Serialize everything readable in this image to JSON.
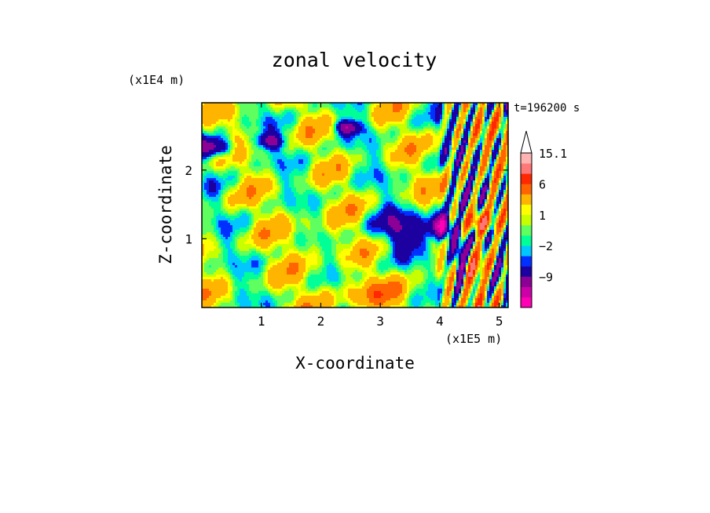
{
  "chart_data": {
    "type": "heatmap",
    "title": "zonal velocity",
    "xlabel": "X-coordinate",
    "ylabel": "Z-coordinate",
    "x_unit": "(x1E5 m)",
    "y_unit": "(x1E4 m)",
    "time_label": "t=196200 s",
    "xlim": [
      0,
      5.15
    ],
    "ylim": [
      0,
      2.98
    ],
    "x_ticks": [
      {
        "value": 1,
        "label": "1"
      },
      {
        "value": 2,
        "label": "2"
      },
      {
        "value": 3,
        "label": "3"
      },
      {
        "value": 4,
        "label": "4"
      },
      {
        "value": 5,
        "label": "5"
      }
    ],
    "y_ticks": [
      {
        "value": 1,
        "label": "1"
      },
      {
        "value": 2,
        "label": "2"
      }
    ],
    "colorbar": {
      "levels": [
        -15,
        -12,
        -9,
        -6,
        -3,
        -2,
        -1,
        0,
        1,
        2,
        3,
        6,
        9,
        12,
        15.1
      ],
      "colors": [
        "#ff00b4",
        "#cc00a8",
        "#8c0096",
        "#1c00a0",
        "#0030ff",
        "#00c8ff",
        "#00ff96",
        "#60ff60",
        "#c8ff00",
        "#ffff00",
        "#ffb400",
        "#ff6400",
        "#ff2800",
        "#ff7878",
        "#ffb4b4"
      ],
      "over_color": "#ffffff",
      "tick_labels": [
        {
          "value": 15.1,
          "label": "15.1"
        },
        {
          "value": 6,
          "label": "6"
        },
        {
          "value": 1,
          "label": "1"
        },
        {
          "value": -2,
          "label": "−2"
        },
        {
          "value": -9,
          "label": "−9"
        }
      ]
    },
    "grid": false
  }
}
